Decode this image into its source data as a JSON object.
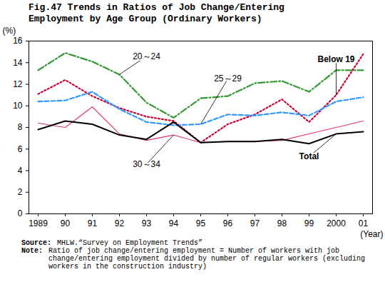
{
  "chart_data": {
    "type": "line",
    "title": "Fig.47 Trends in Ratios of Job Change/Entering\nEmployment by Age Group (Ordinary Workers)",
    "x_label": "(Year)",
    "y_label": "(%)",
    "categories": [
      "1989",
      "90",
      "91",
      "92",
      "93",
      "94",
      "95",
      "96",
      "97",
      "98",
      "99",
      "2000",
      "01"
    ],
    "ylim": [
      0,
      16
    ],
    "yticks": [
      0,
      2,
      4,
      6,
      8,
      10,
      12,
      14,
      16
    ],
    "grid": false,
    "series": [
      {
        "name": "20～24",
        "color": "#339933",
        "line_style": "dashdot",
        "values": [
          13.3,
          14.9,
          14.1,
          12.9,
          10.3,
          8.9,
          10.7,
          10.9,
          12.1,
          12.3,
          11.3,
          13.3,
          13.3
        ],
        "label_at": {
          "x": "93",
          "y": 14.6,
          "to_x": "92"
        }
      },
      {
        "name": "Below 19",
        "color": "#cc0033",
        "line_style": "dotted",
        "values": [
          11.1,
          12.4,
          10.9,
          9.8,
          9.0,
          8.6,
          6.6,
          8.3,
          9.2,
          10.6,
          8.5,
          11.0,
          14.8
        ],
        "label_at": {
          "x": "2000",
          "y": 14.3,
          "to_x": "2000"
        }
      },
      {
        "name": "25～29",
        "color": "#3399ff",
        "line_style": "dashed",
        "values": [
          10.4,
          10.5,
          11.3,
          9.7,
          8.5,
          8.2,
          8.3,
          9.2,
          9.1,
          9.4,
          9.1,
          10.4,
          10.8
        ],
        "label_at": {
          "x": "96",
          "y": 12.5,
          "to_x": "95"
        }
      },
      {
        "name": "30～34",
        "color": "#e0307a",
        "line_style": "solid",
        "values": [
          8.4,
          8.0,
          9.9,
          7.4,
          6.8,
          7.3,
          6.6,
          6.7,
          6.7,
          6.8,
          7.4,
          8.0,
          8.6
        ],
        "label_at": {
          "x": "93",
          "y": 4.6,
          "to_x": "94"
        }
      },
      {
        "name": "Total",
        "color": "#000000",
        "line_style": "solid",
        "values": [
          7.8,
          8.6,
          8.3,
          7.3,
          6.9,
          8.5,
          6.6,
          6.7,
          6.7,
          6.9,
          6.5,
          7.4,
          7.6
        ],
        "label_at": {
          "x": "99",
          "y": 5.3,
          "to_x": "2000"
        }
      }
    ],
    "source": {
      "label": "Source:",
      "text": "MHLW.“Survey on Employment Trends”"
    },
    "note": {
      "label": "Note:",
      "text": "Ratio of job change/entering employment = Number of workers with job change/entering employment divided by number of regular workers (excluding workers in the construction industry)"
    }
  }
}
